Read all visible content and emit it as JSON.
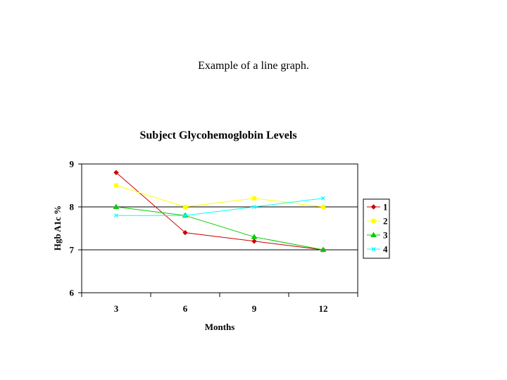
{
  "caption": "Example of a line graph.",
  "chart_data": {
    "type": "line",
    "title": "Subject Glycohemoglobin Levels",
    "xlabel": "Months",
    "ylabel": "Hgb A1c %",
    "categories": [
      "3",
      "6",
      "9",
      "12"
    ],
    "ylim": [
      6,
      9
    ],
    "yticks": [
      6,
      7,
      8,
      9
    ],
    "grid": "horizontal at 7 and 8",
    "legend_position": "right",
    "series": [
      {
        "name": "1",
        "values": [
          8.8,
          7.4,
          7.2,
          7.0
        ],
        "color": "#cc0000",
        "marker": "diamond"
      },
      {
        "name": "2",
        "values": [
          8.5,
          8.0,
          8.2,
          8.0
        ],
        "color": "#ffff00",
        "marker": "square"
      },
      {
        "name": "3",
        "values": [
          8.0,
          7.8,
          7.3,
          7.0
        ],
        "color": "#00cc00",
        "marker": "triangle"
      },
      {
        "name": "4",
        "values": [
          7.8,
          7.8,
          8.0,
          8.2
        ],
        "color": "#00ffff",
        "marker": "x"
      }
    ]
  }
}
